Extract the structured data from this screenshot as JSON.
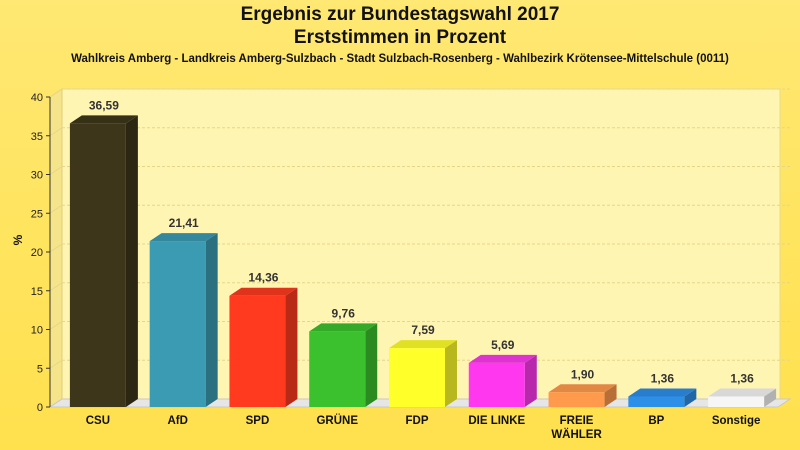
{
  "chart_data": {
    "type": "bar",
    "title": "Ergebnis zur Bundestagswahl 2017",
    "title2": "Erststimmen in Prozent",
    "subtitle": "Wahlkreis Amberg - Landkreis Amberg-Sulzbach - Stadt Sulzbach-Rosenberg - Wahlbezirk Krötensee-Mittelschule (0011)",
    "ylabel": "%",
    "ylim": [
      0,
      40
    ],
    "yticks": [
      0,
      5,
      10,
      15,
      20,
      25,
      30,
      35,
      40
    ],
    "categories": [
      [
        "CSU"
      ],
      [
        "AfD"
      ],
      [
        "SPD"
      ],
      [
        "GRÜNE"
      ],
      [
        "FDP"
      ],
      [
        "DIE LINKE"
      ],
      [
        "FREIE",
        "WÄHLER"
      ],
      [
        "BP"
      ],
      [
        "Sonstige"
      ]
    ],
    "values": [
      36.59,
      21.41,
      14.36,
      9.76,
      7.59,
      5.69,
      1.9,
      1.36,
      1.36
    ],
    "value_labels": [
      "36,59",
      "21,41",
      "14,36",
      "9,76",
      "7,59",
      "5,69",
      "1,90",
      "1,36",
      "1,36"
    ],
    "colors": [
      "#3d361a",
      "#3a9bb3",
      "#ff3a1f",
      "#3cc12e",
      "#ffff2a",
      "#ff38f0",
      "#ff9a4d",
      "#2e8fe8",
      "#f6f6f6"
    ],
    "grid": true
  }
}
